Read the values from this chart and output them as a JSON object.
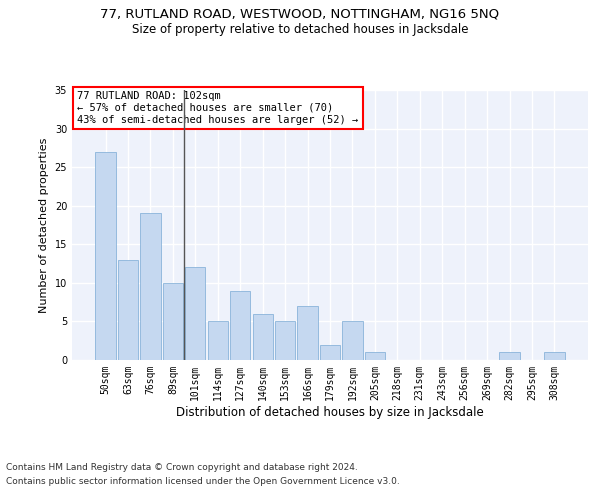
{
  "title1": "77, RUTLAND ROAD, WESTWOOD, NOTTINGHAM, NG16 5NQ",
  "title2": "Size of property relative to detached houses in Jacksdale",
  "xlabel": "Distribution of detached houses by size in Jacksdale",
  "ylabel": "Number of detached properties",
  "categories": [
    "50sqm",
    "63sqm",
    "76sqm",
    "89sqm",
    "101sqm",
    "114sqm",
    "127sqm",
    "140sqm",
    "153sqm",
    "166sqm",
    "179sqm",
    "192sqm",
    "205sqm",
    "218sqm",
    "231sqm",
    "243sqm",
    "256sqm",
    "269sqm",
    "282sqm",
    "295sqm",
    "308sqm"
  ],
  "values": [
    27,
    13,
    19,
    10,
    12,
    5,
    9,
    6,
    5,
    7,
    2,
    5,
    1,
    0,
    0,
    0,
    0,
    0,
    1,
    0,
    1
  ],
  "bar_color": "#c5d8f0",
  "bar_edgecolor": "#7aaad4",
  "background_color": "#eef2fb",
  "grid_color": "#ffffff",
  "annotation_box_text": "77 RUTLAND ROAD: 102sqm\n← 57% of detached houses are smaller (70)\n43% of semi-detached houses are larger (52) →",
  "annotation_box_color": "white",
  "annotation_box_edgecolor": "red",
  "vline_x_index": 4,
  "vline_color": "#555555",
  "ylim": [
    0,
    35
  ],
  "yticks": [
    0,
    5,
    10,
    15,
    20,
    25,
    30,
    35
  ],
  "footer1": "Contains HM Land Registry data © Crown copyright and database right 2024.",
  "footer2": "Contains public sector information licensed under the Open Government Licence v3.0.",
  "title1_fontsize": 9.5,
  "title2_fontsize": 8.5,
  "xlabel_fontsize": 8.5,
  "ylabel_fontsize": 8,
  "tick_fontsize": 7,
  "annotation_fontsize": 7.5,
  "footer_fontsize": 6.5
}
